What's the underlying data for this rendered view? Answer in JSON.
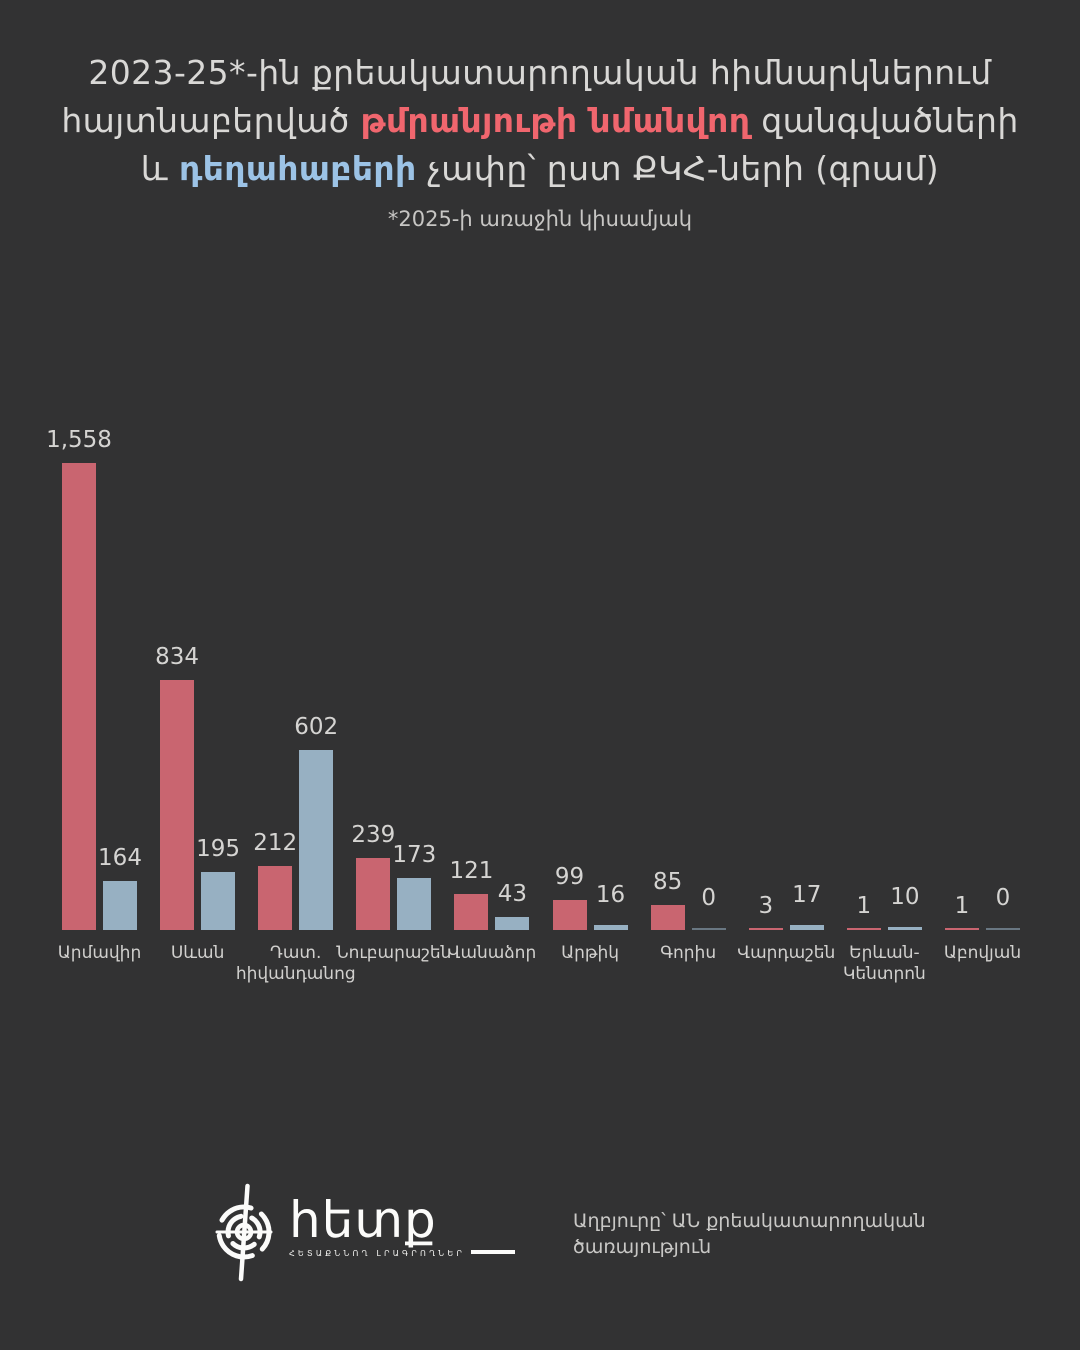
{
  "page": {
    "background": "#323233"
  },
  "title": {
    "line1": "2023-25*-ին քրեակատարողական հիմնարկներում",
    "line2": {
      "pre": "հայտնաբերված ",
      "accent_red": "թմրանյութի նմանվող",
      "post": " զանգվածների"
    },
    "line3": {
      "pre": "և ",
      "accent_blue": "դեղահաբերի",
      "post": " չափը՝ ըստ ՔԿՀ-ների (գրամ)"
    },
    "accent_red_color": "#f0666e",
    "accent_blue_color": "#9cc3e6"
  },
  "subtitle": "*2025-ի առաջին կիսամյակ",
  "chart_data": {
    "type": "bar",
    "title": "2023-25-ին քրեակատարողական հիմնարկներում հայտնաբերված թմրանյութի նմանվող զանգվածների և դեղահաբերի չափը՝ ըստ ՔԿՀ-ների (գրամ)",
    "subtitle": "*2025-ի առաջին կիսամյակ",
    "categories": [
      "Արմավիր",
      "Սևան",
      "Դատ. հիվանդանոց",
      "Նուբարաշեն",
      "Վանաձոր",
      "Արթիկ",
      "Գորիս",
      "Վարդաշեն",
      "Երևան-Կենտրոն",
      "Աբովյան"
    ],
    "categories_wrapped": [
      [
        "Արմավիր"
      ],
      [
        "Սևան"
      ],
      [
        "Դատ.",
        "հիվանդանոց"
      ],
      [
        "Նուբարաշեն"
      ],
      [
        "Վանաձոր"
      ],
      [
        "Արթիկ"
      ],
      [
        "Գորիս"
      ],
      [
        "Վարդաշեն"
      ],
      [
        "Երևան-",
        "Կենտրոն"
      ],
      [
        "Աբովյան"
      ]
    ],
    "series": [
      {
        "name": "թմրանյութի նմանվող զանգվածներ",
        "color": "#c96570",
        "values": [
          1558,
          834,
          212,
          239,
          121,
          99,
          85,
          3,
          1,
          1
        ],
        "labels": [
          "1,558",
          "834",
          "212",
          "239",
          "121",
          "99",
          "85",
          "3",
          "1",
          "1"
        ]
      },
      {
        "name": "դեղահաբեր",
        "color": "#97b0c2",
        "values": [
          164,
          195,
          602,
          173,
          43,
          16,
          0,
          17,
          10,
          0
        ],
        "labels": [
          "164",
          "195",
          "602",
          "173",
          "43",
          "16",
          "0",
          "17",
          "10",
          "0"
        ]
      }
    ],
    "ylim": [
      0,
      1558
    ],
    "xlabel": "",
    "ylabel": "",
    "grid": false,
    "legend": "none",
    "value_label_color": "#d5d4d2",
    "category_label_color": "#d1d0ce"
  },
  "footer": {
    "logo_text": "հետք",
    "logo_caption": "ՀԵՏԱՔՆՆՈՂ ԼՐԱԳՐՈՂՆԵՐ",
    "source_line1": "Աղբյուրը՝ ԱՆ քրեակատարողական",
    "source_line2": "ծառայություն"
  }
}
